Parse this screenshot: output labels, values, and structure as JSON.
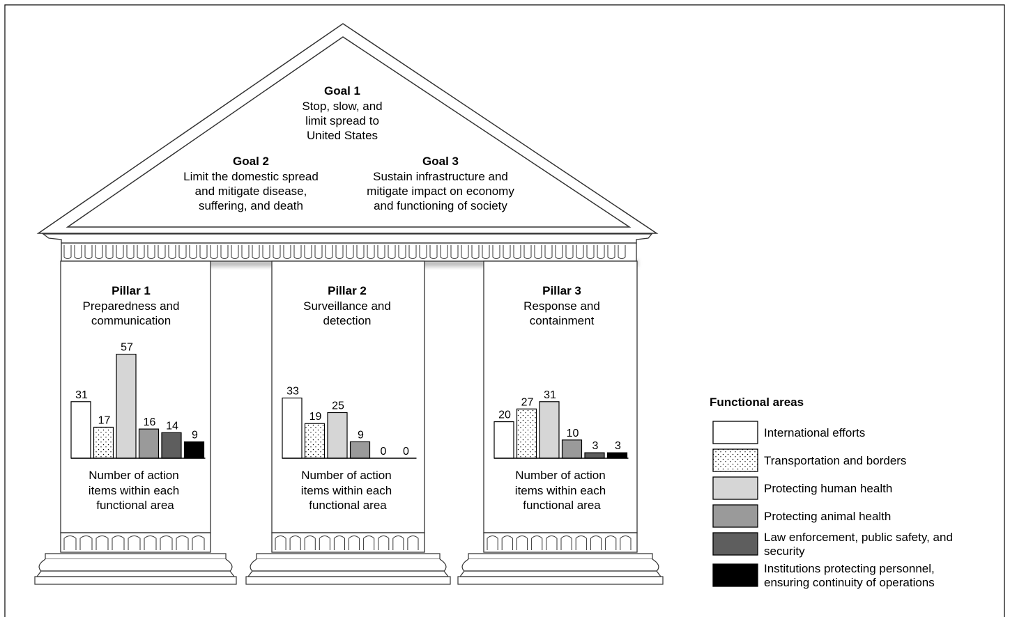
{
  "goals": [
    {
      "title": "Goal 1",
      "lines": [
        "Stop, slow, and",
        "limit spread to",
        "United States"
      ]
    },
    {
      "title": "Goal 2",
      "lines": [
        "Limit the domestic spread",
        "and mitigate disease,",
        "suffering, and death"
      ]
    },
    {
      "title": "Goal 3",
      "lines": [
        "Sustain infrastructure and",
        "mitigate impact on economy",
        "and functioning of society"
      ]
    }
  ],
  "pillars": [
    {
      "title": "Pillar 1",
      "lines": [
        "Preparedness and",
        "communication"
      ]
    },
    {
      "title": "Pillar 2",
      "lines": [
        "Surveillance and",
        "detection"
      ]
    },
    {
      "title": "Pillar 3",
      "lines": [
        "Response and",
        "containment"
      ]
    }
  ],
  "chart_caption_lines": [
    "Number of action",
    "items within each",
    "functional area"
  ],
  "legend": {
    "title": "Functional areas",
    "items": [
      {
        "lines": [
          "International efforts"
        ],
        "pattern": "white"
      },
      {
        "lines": [
          "Transportation and borders"
        ],
        "pattern": "dots"
      },
      {
        "lines": [
          "Protecting human health"
        ],
        "pattern": "light-gray"
      },
      {
        "lines": [
          "Protecting animal health"
        ],
        "pattern": "mid-gray"
      },
      {
        "lines": [
          "Law enforcement, public safety, and",
          "security"
        ],
        "pattern": "dark-gray"
      },
      {
        "lines": [
          "Institutions protecting personnel,",
          "ensuring continuity of operations"
        ],
        "pattern": "black"
      }
    ]
  },
  "colors": {
    "white": "#ffffff",
    "light-gray": "#d6d6d6",
    "mid-gray": "#9a9a9a",
    "dark-gray": "#5e5e5e",
    "black": "#000000",
    "dots": "#ffffff"
  },
  "chart_data": [
    {
      "type": "bar",
      "pillar": "Pillar 1",
      "categories": [
        "International efforts",
        "Transportation and borders",
        "Protecting human health",
        "Protecting animal health",
        "Law enforcement, public safety, and security",
        "Institutions protecting personnel, ensuring continuity of operations"
      ],
      "values": [
        31,
        17,
        57,
        16,
        14,
        9
      ]
    },
    {
      "type": "bar",
      "pillar": "Pillar 2",
      "categories": [
        "International efforts",
        "Transportation and borders",
        "Protecting human health",
        "Protecting animal health",
        "Law enforcement, public safety, and security",
        "Institutions protecting personnel, ensuring continuity of operations"
      ],
      "values": [
        33,
        19,
        25,
        9,
        0,
        0
      ]
    },
    {
      "type": "bar",
      "pillar": "Pillar 3",
      "categories": [
        "International efforts",
        "Transportation and borders",
        "Protecting human health",
        "Protecting animal health",
        "Law enforcement, public safety, and security",
        "Institutions protecting personnel, ensuring continuity of operations"
      ],
      "values": [
        20,
        27,
        31,
        10,
        3,
        3
      ]
    }
  ]
}
